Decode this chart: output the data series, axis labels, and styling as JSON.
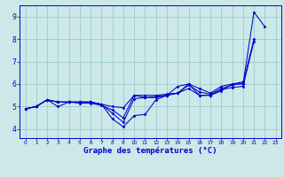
{
  "background_color": "#cce8e8",
  "grid_color": "#99cccc",
  "line_color": "#0000cc",
  "xlabel": "Graphe des températures (°C)",
  "xlim": [
    -0.5,
    23.5
  ],
  "ylim": [
    3.6,
    9.5
  ],
  "yticks": [
    4,
    5,
    6,
    7,
    8,
    9
  ],
  "xticks": [
    0,
    1,
    2,
    3,
    4,
    5,
    6,
    7,
    8,
    9,
    10,
    11,
    12,
    13,
    14,
    15,
    16,
    17,
    18,
    19,
    20,
    21,
    22,
    23
  ],
  "series": [
    {
      "x": [
        0,
        1,
        2,
        3,
        4,
        5,
        6,
        7,
        8,
        9,
        10,
        11,
        12,
        13,
        14,
        15,
        16,
        17,
        18,
        19,
        20,
        21,
        22
      ],
      "y": [
        4.9,
        5.0,
        5.3,
        5.0,
        5.2,
        5.2,
        5.2,
        5.1,
        4.45,
        4.1,
        4.6,
        4.65,
        5.3,
        5.5,
        5.9,
        6.0,
        5.5,
        5.5,
        5.7,
        6.0,
        6.0,
        9.2,
        8.55
      ]
    },
    {
      "x": [
        0,
        1,
        2,
        3,
        4,
        5,
        6,
        7,
        8,
        9,
        10,
        11,
        12,
        13,
        14,
        15,
        16,
        17,
        18,
        19,
        20,
        21
      ],
      "y": [
        4.9,
        5.0,
        5.3,
        5.2,
        5.2,
        5.2,
        5.2,
        5.1,
        4.7,
        4.3,
        5.35,
        5.4,
        5.4,
        5.5,
        5.6,
        5.8,
        5.5,
        5.5,
        5.75,
        5.85,
        5.9,
        7.9
      ]
    },
    {
      "x": [
        0,
        1,
        2,
        3,
        4,
        5,
        6,
        7,
        8,
        9,
        10,
        11,
        12,
        13,
        14,
        15,
        16,
        17,
        18,
        19,
        20,
        21
      ],
      "y": [
        4.9,
        5.0,
        5.3,
        5.2,
        5.2,
        5.15,
        5.15,
        5.05,
        4.85,
        4.5,
        5.5,
        5.4,
        5.45,
        5.5,
        5.6,
        5.95,
        5.65,
        5.55,
        5.8,
        5.95,
        6.05,
        8.0
      ]
    },
    {
      "x": [
        0,
        1,
        2,
        3,
        4,
        5,
        6,
        7,
        8,
        9,
        10,
        11,
        12,
        13,
        14,
        15,
        16,
        17,
        18,
        19,
        20
      ],
      "y": [
        4.9,
        5.0,
        5.3,
        5.2,
        5.2,
        5.2,
        5.2,
        5.1,
        5.0,
        4.95,
        5.5,
        5.5,
        5.5,
        5.55,
        5.6,
        6.0,
        5.8,
        5.6,
        5.9,
        6.0,
        6.1
      ]
    }
  ],
  "figsize": [
    3.2,
    2.0
  ],
  "dpi": 100
}
